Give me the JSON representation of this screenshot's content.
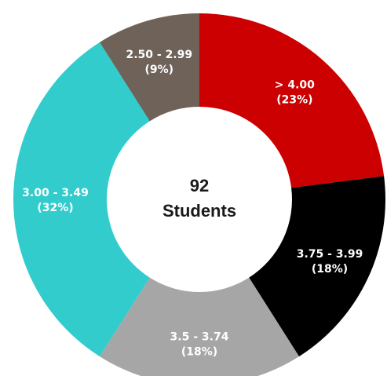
{
  "chart_data": {
    "type": "pie",
    "variant": "donut",
    "center": {
      "value": "92",
      "label": "Students"
    },
    "segments": [
      {
        "label": "> 4.00",
        "percent_label": "(23%)",
        "value": 23,
        "color": "#cc0000"
      },
      {
        "label": "3.75 - 3.99",
        "percent_label": "(18%)",
        "value": 18,
        "color": "#000000"
      },
      {
        "label": "3.5 - 3.74",
        "percent_label": "(18%)",
        "value": 18,
        "color": "#a6a6a6"
      },
      {
        "label": "3.00 - 3.49",
        "percent_label": "(32%)",
        "value": 32,
        "color": "#33cccc"
      },
      {
        "label": "2.50 - 2.99",
        "percent_label": "(9%)",
        "value": 9,
        "color": "#6e6259"
      }
    ],
    "legend": "none"
  }
}
